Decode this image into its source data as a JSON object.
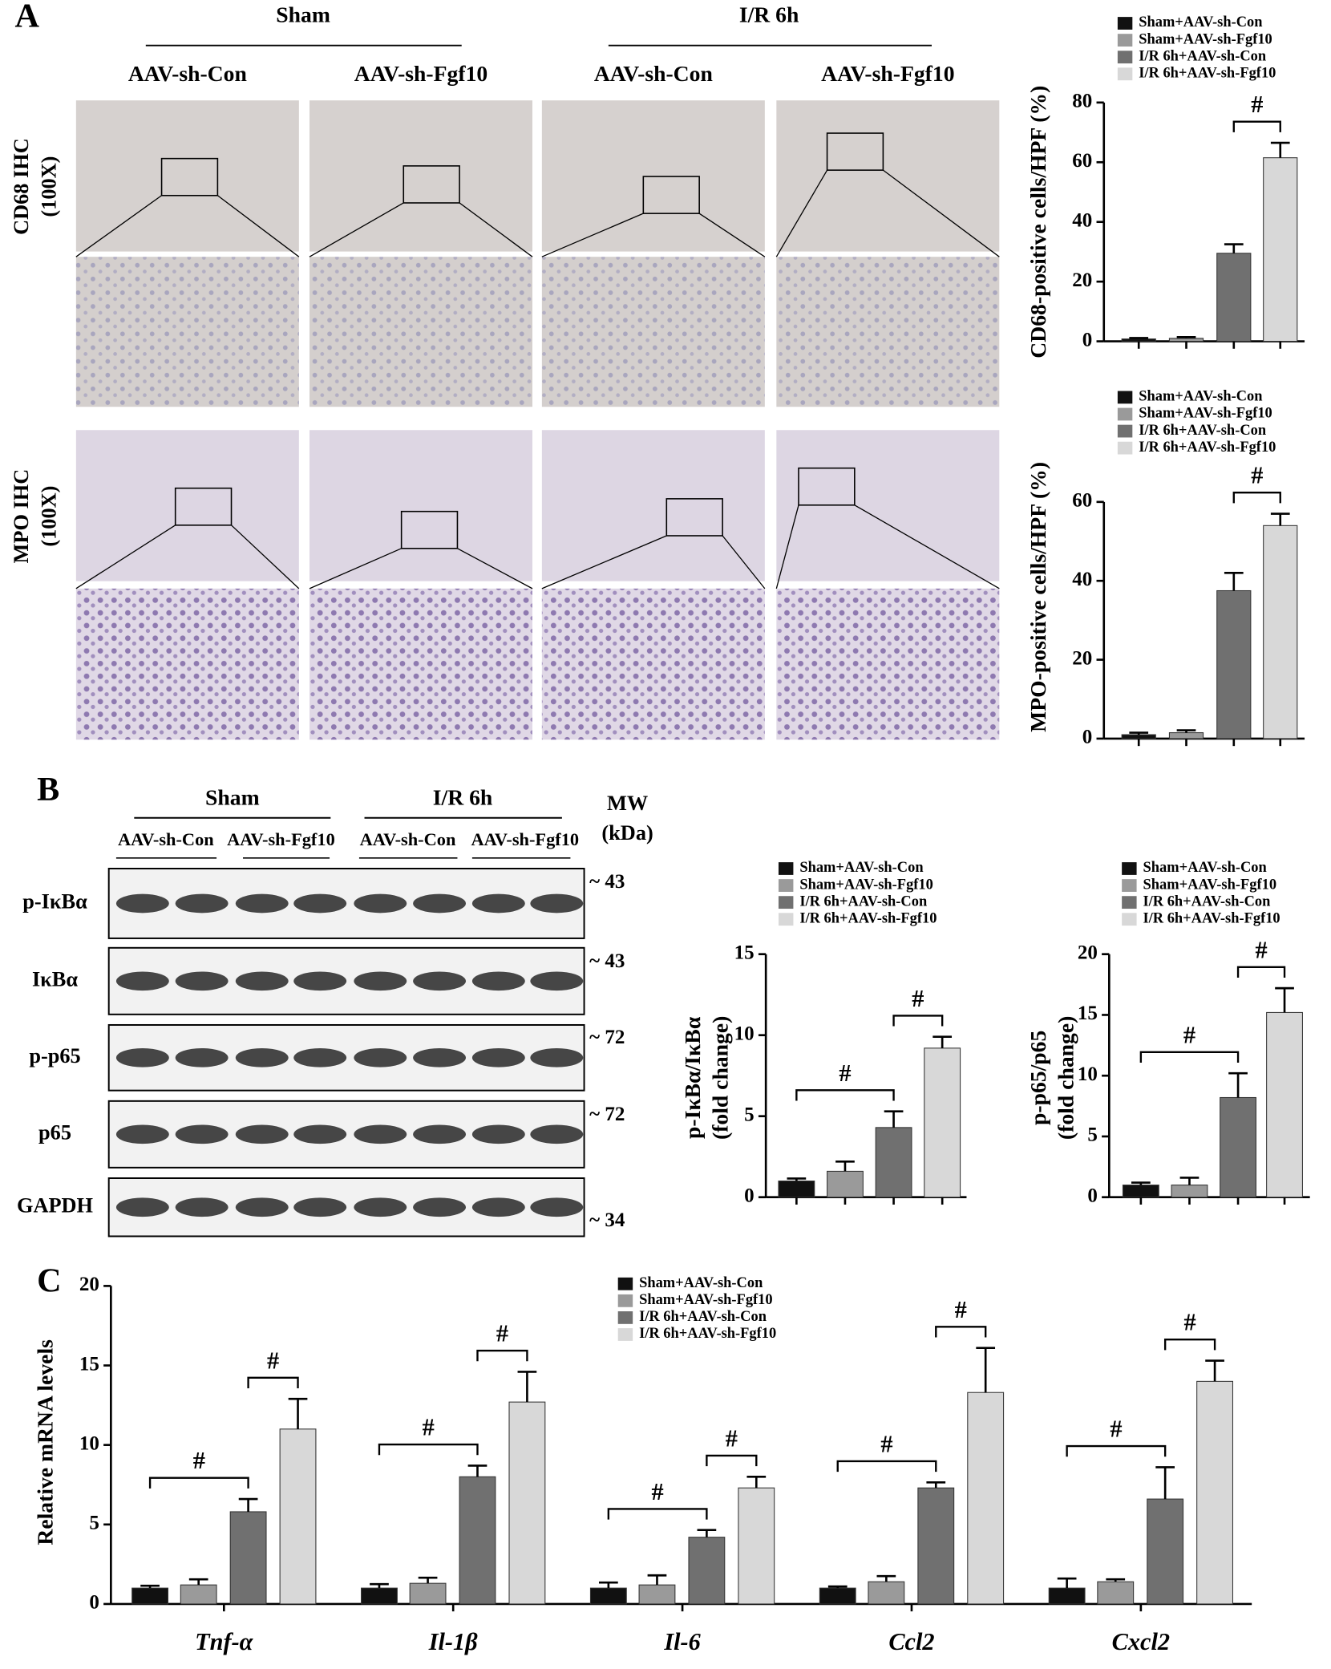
{
  "panel_labels": [
    "A",
    "B",
    "C"
  ],
  "ihc": {
    "groups": [
      "Sham",
      "I/R 6h"
    ],
    "columns": [
      "AAV-sh-Con",
      "AAV-sh-Fgf10",
      "AAV-sh-Con",
      "AAV-sh-Fgf10"
    ],
    "rows": [
      {
        "lines": [
          "CD68 IHC",
          "(100X)"
        ]
      },
      {
        "lines": [
          "MPO IHC",
          "(100X)"
        ]
      }
    ]
  },
  "western_blot": {
    "groups": [
      "Sham",
      "I/R 6h"
    ],
    "columns": [
      "AAV-sh-Con",
      "AAV-sh-Fgf10",
      "AAV-sh-Con",
      "AAV-sh-Fgf10"
    ],
    "mw_header": [
      "MW",
      "(kDa)"
    ],
    "rows": [
      {
        "label": "p-IκBα",
        "mw": "~ 43"
      },
      {
        "label": "IκBα",
        "mw": "~ 43"
      },
      {
        "label": "p-p65",
        "mw": "~ 72"
      },
      {
        "label": "p65",
        "mw": "~ 72"
      },
      {
        "label": "GAPDH",
        "mw": "~ 34"
      }
    ]
  },
  "chart_data": [
    {
      "type": "bar",
      "ylabel": "CD68-positive cells/HPF (%)",
      "ylim": [
        0,
        80
      ],
      "yticks": [
        0,
        20,
        40,
        60,
        80
      ],
      "series": [
        {
          "name": "Sham+AAV-sh-Con",
          "color": "#111111",
          "values": [
            0.8
          ],
          "errors": [
            0.3
          ]
        },
        {
          "name": "Sham+AAV-sh-Fgf10",
          "color": "#9a9a9a",
          "values": [
            1.0
          ],
          "errors": [
            0.4
          ]
        },
        {
          "name": "I/R 6h+AAV-sh-Con",
          "color": "#707070",
          "values": [
            29.5
          ],
          "errors": [
            3
          ]
        },
        {
          "name": "I/R 6h+AAV-sh-Fgf10",
          "color": "#d8d8d8",
          "values": [
            61.5
          ],
          "errors": [
            5
          ]
        }
      ],
      "annotations": [
        {
          "text": "#",
          "from": "I/R 6h+AAV-sh-Con",
          "to": "I/R 6h+AAV-sh-Fgf10"
        }
      ]
    },
    {
      "type": "bar",
      "ylabel": "MPO-positive cells/HPF (%)",
      "ylim": [
        0,
        60
      ],
      "yticks": [
        0,
        20,
        40,
        60
      ],
      "series": [
        {
          "name": "Sham+AAV-sh-Con",
          "color": "#111111",
          "values": [
            1.0
          ],
          "errors": [
            0.5
          ]
        },
        {
          "name": "Sham+AAV-sh-Fgf10",
          "color": "#9a9a9a",
          "values": [
            1.5
          ],
          "errors": [
            0.6
          ]
        },
        {
          "name": "I/R 6h+AAV-sh-Con",
          "color": "#707070",
          "values": [
            37.5
          ],
          "errors": [
            4.5
          ]
        },
        {
          "name": "I/R 6h+AAV-sh-Fgf10",
          "color": "#d8d8d8",
          "values": [
            54
          ],
          "errors": [
            3
          ]
        }
      ],
      "annotations": [
        {
          "text": "#",
          "from": "I/R 6h+AAV-sh-Con",
          "to": "I/R 6h+AAV-sh-Fgf10"
        }
      ]
    },
    {
      "type": "bar",
      "ylabel": [
        "p-IκBα/IκBα",
        "(fold change)"
      ],
      "ylim": [
        0,
        15
      ],
      "yticks": [
        0,
        5,
        10,
        15
      ],
      "series": [
        {
          "name": "Sham+AAV-sh-Con",
          "color": "#111111",
          "values": [
            1.0
          ],
          "errors": [
            0.15
          ]
        },
        {
          "name": "Sham+AAV-sh-Fgf10",
          "color": "#9a9a9a",
          "values": [
            1.6
          ],
          "errors": [
            0.6
          ]
        },
        {
          "name": "I/R 6h+AAV-sh-Con",
          "color": "#707070",
          "values": [
            4.3
          ],
          "errors": [
            1.0
          ]
        },
        {
          "name": "I/R 6h+AAV-sh-Fgf10",
          "color": "#d8d8d8",
          "values": [
            9.2
          ],
          "errors": [
            0.7
          ]
        }
      ],
      "annotations": [
        {
          "text": "#",
          "from": "Sham+AAV-sh-Con",
          "to": "I/R 6h+AAV-sh-Con"
        },
        {
          "text": "#",
          "from": "I/R 6h+AAV-sh-Con",
          "to": "I/R 6h+AAV-sh-Fgf10"
        }
      ]
    },
    {
      "type": "bar",
      "ylabel": [
        "p-p65/p65",
        "(fold change)"
      ],
      "ylim": [
        0,
        20
      ],
      "yticks": [
        0,
        5,
        10,
        15,
        20
      ],
      "series": [
        {
          "name": "Sham+AAV-sh-Con",
          "color": "#111111",
          "values": [
            1.0
          ],
          "errors": [
            0.2
          ]
        },
        {
          "name": "Sham+AAV-sh-Fgf10",
          "color": "#9a9a9a",
          "values": [
            1.0
          ],
          "errors": [
            0.6
          ]
        },
        {
          "name": "I/R 6h+AAV-sh-Con",
          "color": "#707070",
          "values": [
            8.2
          ],
          "errors": [
            2.0
          ]
        },
        {
          "name": "I/R 6h+AAV-sh-Fgf10",
          "color": "#d8d8d8",
          "values": [
            15.2
          ],
          "errors": [
            2.0
          ]
        }
      ],
      "annotations": [
        {
          "text": "#",
          "from": "Sham+AAV-sh-Con",
          "to": "I/R 6h+AAV-sh-Con"
        },
        {
          "text": "#",
          "from": "I/R 6h+AAV-sh-Con",
          "to": "I/R 6h+AAV-sh-Fgf10"
        }
      ]
    },
    {
      "type": "bar",
      "ylabel": "Relative mRNA levels",
      "ylim": [
        0,
        20
      ],
      "yticks": [
        0,
        5,
        10,
        15,
        20
      ],
      "categories": [
        "Tnf-α",
        "Il-1β",
        "Il-6",
        "Ccl2",
        "Cxcl2"
      ],
      "series": [
        {
          "name": "Sham+AAV-sh-Con",
          "color": "#111111",
          "values": [
            1.0,
            1.0,
            1.0,
            1.0,
            1.0
          ],
          "errors": [
            0.15,
            0.25,
            0.35,
            0.1,
            0.6
          ]
        },
        {
          "name": "Sham+AAV-sh-Fgf10",
          "color": "#9a9a9a",
          "values": [
            1.2,
            1.3,
            1.2,
            1.4,
            1.4
          ],
          "errors": [
            0.35,
            0.35,
            0.6,
            0.35,
            0.15
          ]
        },
        {
          "name": "I/R 6h+AAV-sh-Con",
          "color": "#707070",
          "values": [
            5.8,
            8.0,
            4.2,
            7.3,
            6.6
          ],
          "errors": [
            0.8,
            0.7,
            0.45,
            0.35,
            2.0
          ]
        },
        {
          "name": "I/R 6h+AAV-sh-Fgf10",
          "color": "#d8d8d8",
          "values": [
            11.0,
            12.7,
            7.3,
            13.3,
            14.0
          ],
          "errors": [
            1.9,
            1.9,
            0.7,
            2.8,
            1.3
          ]
        }
      ],
      "annotations": [
        {
          "text": "#",
          "category": "Tnf-α",
          "from": "Sham+AAV-sh-Con",
          "to": "I/R 6h+AAV-sh-Con"
        },
        {
          "text": "#",
          "category": "Tnf-α",
          "from": "I/R 6h+AAV-sh-Con",
          "to": "I/R 6h+AAV-sh-Fgf10"
        },
        {
          "text": "#",
          "category": "Il-1β",
          "from": "Sham+AAV-sh-Con",
          "to": "I/R 6h+AAV-sh-Con"
        },
        {
          "text": "#",
          "category": "Il-1β",
          "from": "I/R 6h+AAV-sh-Con",
          "to": "I/R 6h+AAV-sh-Fgf10"
        },
        {
          "text": "#",
          "category": "Il-6",
          "from": "Sham+AAV-sh-Con",
          "to": "I/R 6h+AAV-sh-Con"
        },
        {
          "text": "#",
          "category": "Il-6",
          "from": "I/R 6h+AAV-sh-Con",
          "to": "I/R 6h+AAV-sh-Fgf10"
        },
        {
          "text": "#",
          "category": "Ccl2",
          "from": "Sham+AAV-sh-Con",
          "to": "I/R 6h+AAV-sh-Con"
        },
        {
          "text": "#",
          "category": "Ccl2",
          "from": "I/R 6h+AAV-sh-Con",
          "to": "I/R 6h+AAV-sh-Fgf10"
        },
        {
          "text": "#",
          "category": "Cxcl2",
          "from": "Sham+AAV-sh-Con",
          "to": "I/R 6h+AAV-sh-Con"
        },
        {
          "text": "#",
          "category": "Cxcl2",
          "from": "I/R 6h+AAV-sh-Con",
          "to": "I/R 6h+AAV-sh-Fgf10"
        }
      ]
    }
  ]
}
